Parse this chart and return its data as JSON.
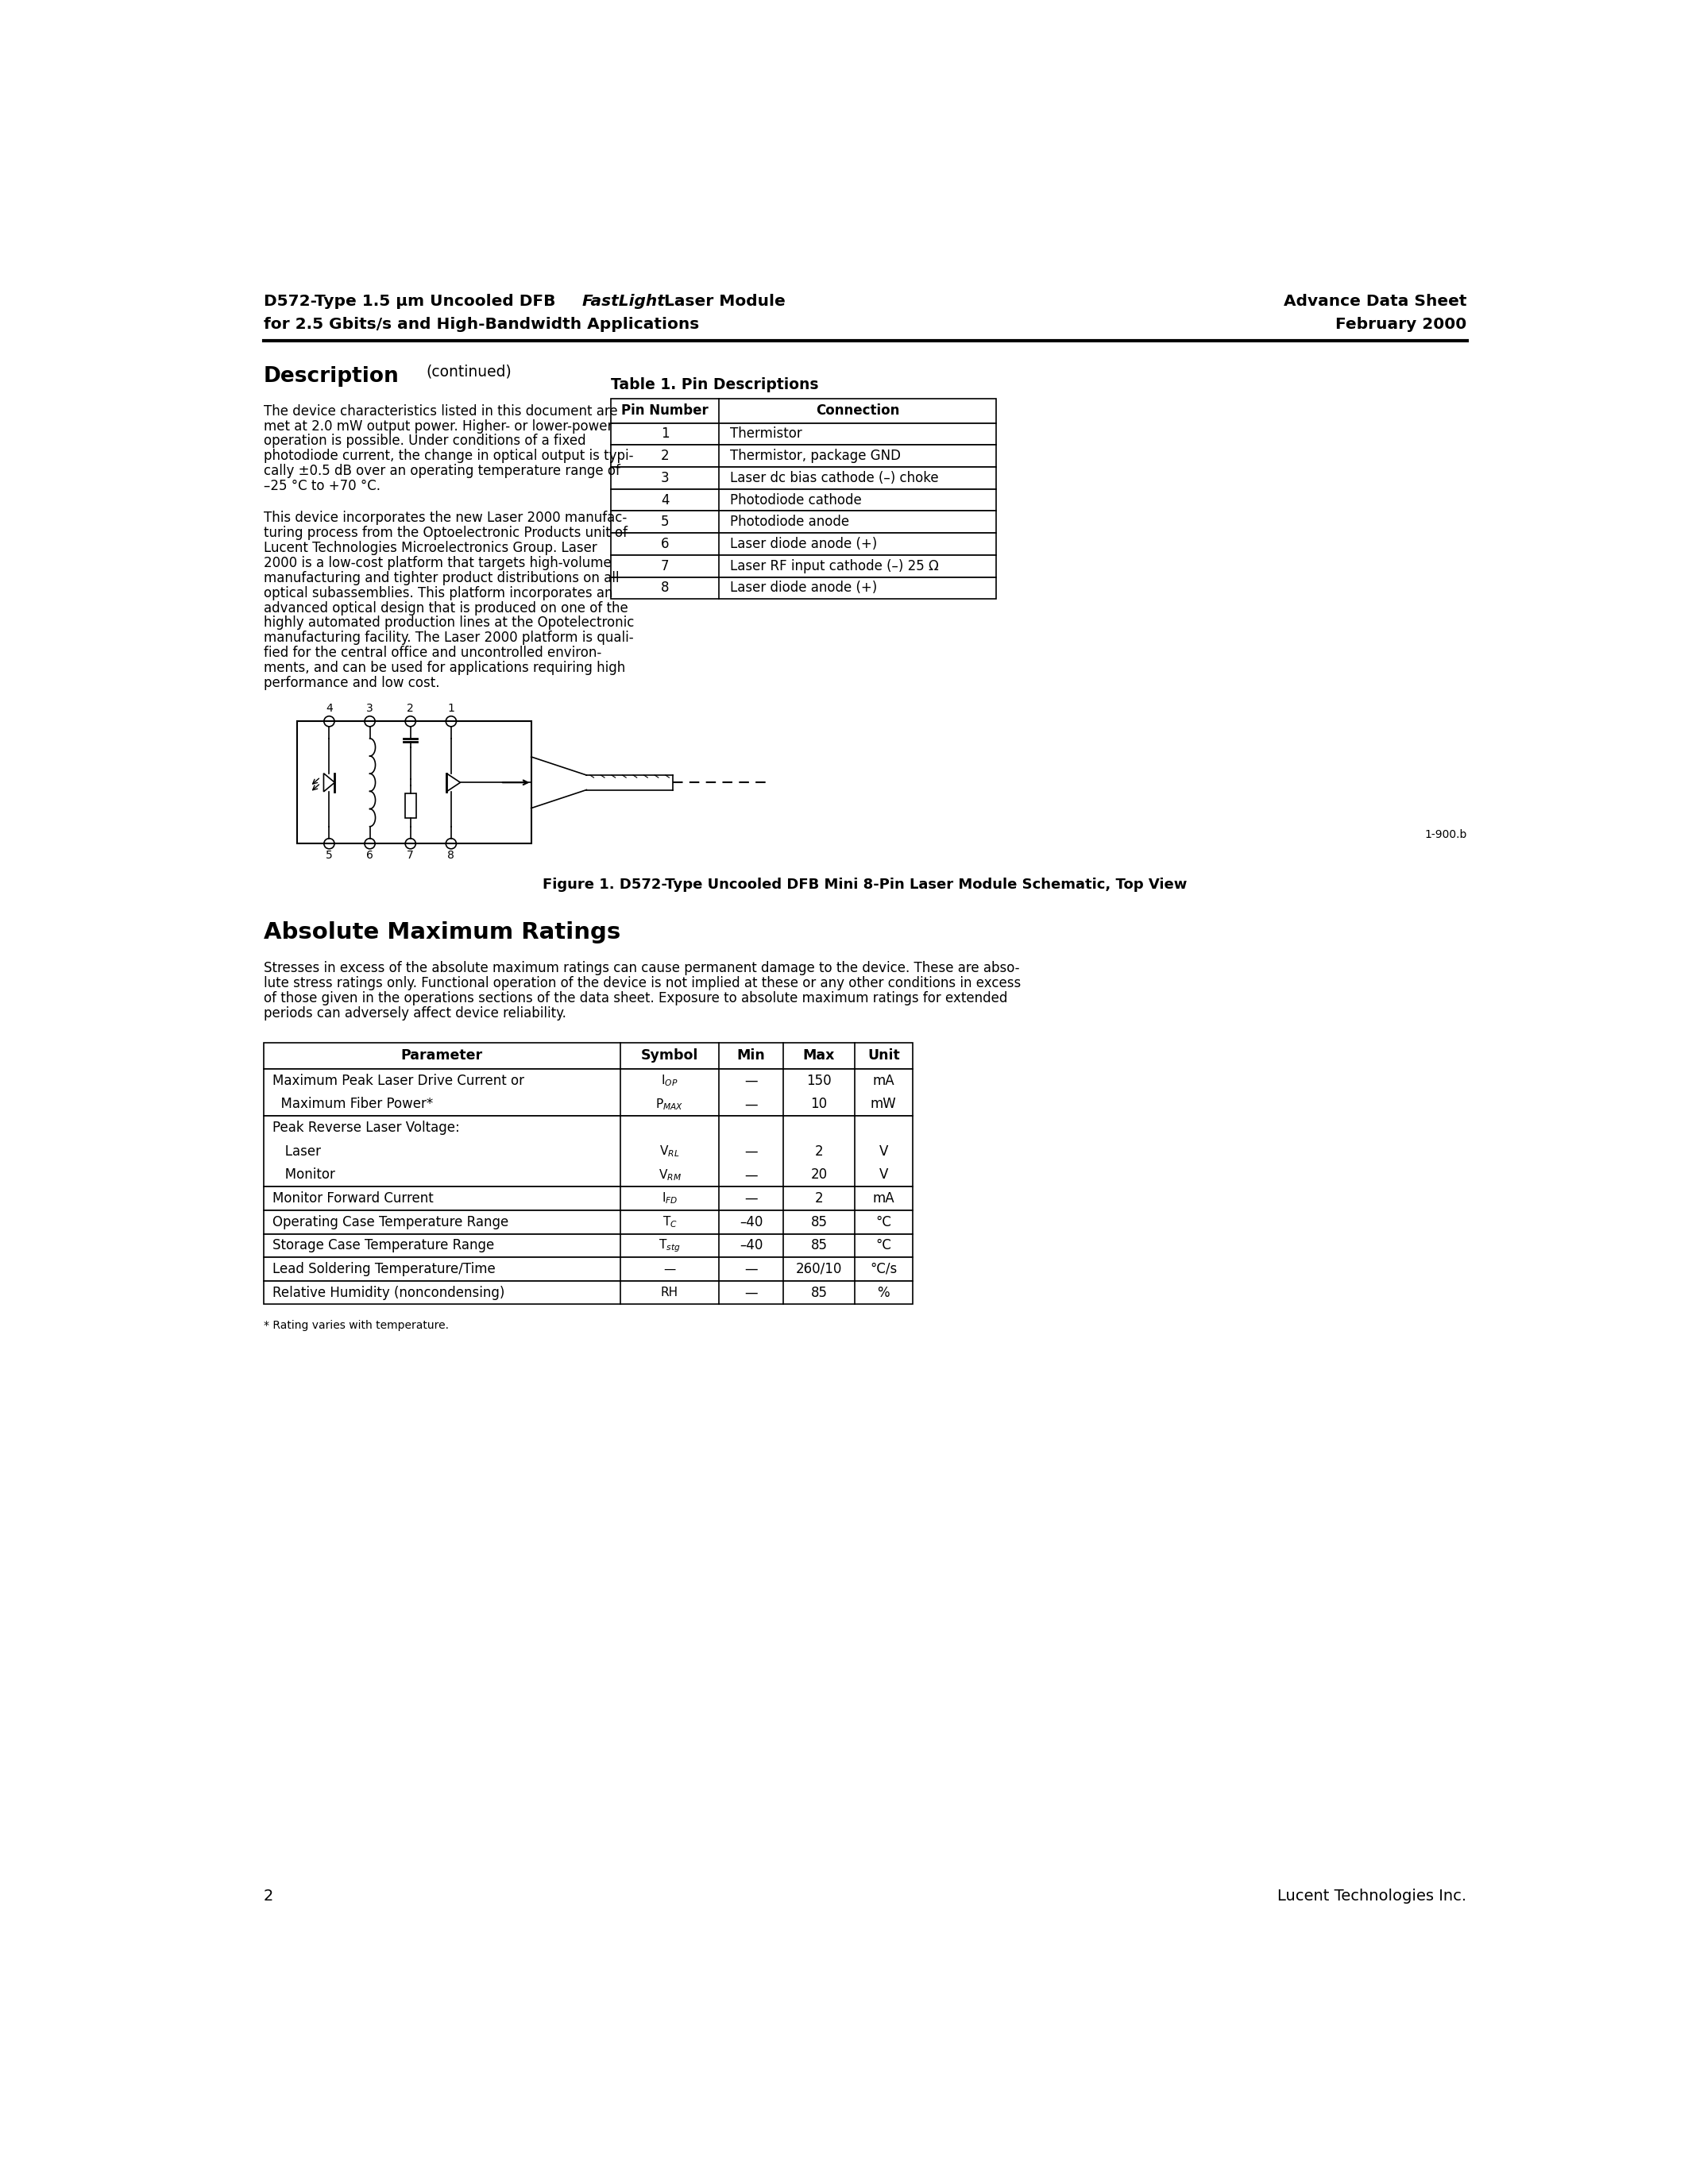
{
  "page_width": 21.25,
  "page_height": 27.5,
  "ml": 0.85,
  "mr": 0.85,
  "bg_color": "#ffffff",
  "header_left1_pre": "D572-Type 1.5 μm Uncooled DFB ",
  "header_left1_italic": "FastLight",
  "header_left1_post": " Laser Module",
  "header_left2": "for 2.5 Gbits/s and High-Bandwidth Applications",
  "header_right1": "Advance Data Sheet",
  "header_right2": "February 2000",
  "desc_title": "Description",
  "desc_subtitle": "(continued)",
  "para1_lines": [
    "The device characteristics listed in this document are",
    "met at 2.0 mW output power. Higher- or lower-power",
    "operation is possible. Under conditions of a fixed",
    "photodiode current, the change in optical output is typi-",
    "cally ±0.5 dB over an operating temperature range of",
    "–25 °C to +70 °C."
  ],
  "para2_lines": [
    "This device incorporates the new Laser 2000 manufac-",
    "turing process from the Optoelectronic Products unit of",
    "Lucent Technologies Microelectronics Group. Laser",
    "2000 is a low-cost platform that targets high-volume",
    "manufacturing and tighter product distributions on all",
    "optical subassemblies. This platform incorporates an",
    "advanced optical design that is produced on one of the",
    "highly automated production lines at the Opotelectronic",
    "manufacturing facility. The Laser 2000 platform is quali-",
    "fied for the central office and uncontrolled environ-",
    "ments, and can be used for applications requiring high",
    "performance and low cost."
  ],
  "table1_title": "Table 1. Pin Descriptions",
  "table1_col1_header": "Pin Number",
  "table1_col2_header": "Connection",
  "table1_rows": [
    [
      "1",
      "Thermistor"
    ],
    [
      "2",
      "Thermistor, package GND"
    ],
    [
      "3",
      "Laser dc bias cathode (–) choke"
    ],
    [
      "4",
      "Photodiode cathode"
    ],
    [
      "5",
      "Photodiode anode"
    ],
    [
      "6",
      "Laser diode anode (+)"
    ],
    [
      "7",
      "Laser RF input cathode (–) 25 Ω"
    ],
    [
      "8",
      "Laser diode anode (+)"
    ]
  ],
  "figure_label": "1-900.b",
  "figure_caption": "Figure 1. D572-Type Uncooled DFB Mini 8-Pin Laser Module Schematic, Top View",
  "amr_title": "Absolute Maximum Ratings",
  "amr_body_lines": [
    "Stresses in excess of the absolute maximum ratings can cause permanent damage to the device. These are abso-",
    "lute stress ratings only. Functional operation of the device is not implied at these or any other conditions in excess",
    "of those given in the operations sections of the data sheet. Exposure to absolute maximum ratings for extended",
    "periods can adversely affect device reliability."
  ],
  "table2_headers": [
    "Parameter",
    "Symbol",
    "Min",
    "Max",
    "Unit"
  ],
  "table2_col_widths": [
    5.8,
    1.6,
    1.05,
    1.15,
    0.95
  ],
  "table2_groups": [
    {
      "rows": [
        [
          "Maximum Peak Laser Drive Current or",
          "I$_{OP}$",
          "—",
          "150",
          "mA"
        ],
        [
          "  Maximum Fiber Power*",
          "P$_{MAX}$",
          "—",
          "10",
          "mW"
        ]
      ]
    },
    {
      "rows": [
        [
          "Peak Reverse Laser Voltage:",
          "",
          "",
          "",
          ""
        ],
        [
          "   Laser",
          "V$_{RL}$",
          "—",
          "2",
          "V"
        ],
        [
          "   Monitor",
          "V$_{RM}$",
          "—",
          "20",
          "V"
        ]
      ]
    },
    {
      "rows": [
        [
          "Monitor Forward Current",
          "I$_{FD}$",
          "—",
          "2",
          "mA"
        ]
      ]
    },
    {
      "rows": [
        [
          "Operating Case Temperature Range",
          "T$_{C}$",
          "–40",
          "85",
          "°C"
        ]
      ]
    },
    {
      "rows": [
        [
          "Storage Case Temperature Range",
          "T$_{stg}$",
          "–40",
          "85",
          "°C"
        ]
      ]
    },
    {
      "rows": [
        [
          "Lead Soldering Temperature/Time",
          "—",
          "—",
          "260/10",
          "°C/s"
        ]
      ]
    },
    {
      "rows": [
        [
          "Relative Humidity (noncondensing)",
          "RH",
          "—",
          "85",
          "%"
        ]
      ]
    }
  ],
  "footnote": "* Rating varies with temperature.",
  "page_num": "2",
  "company": "Lucent Technologies Inc."
}
